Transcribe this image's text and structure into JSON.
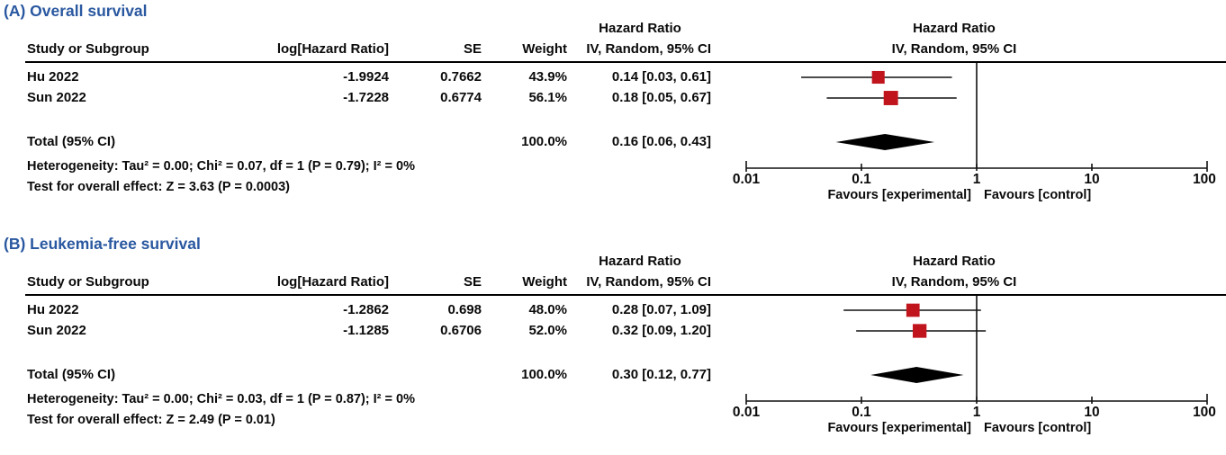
{
  "colors": {
    "title_blue": "#2a58a0",
    "marker_red": "#c1151d",
    "diamond_black": "#000000",
    "line_black": "#111111"
  },
  "chart_data": [
    {
      "type": "forest",
      "panel_label": "(A) Overall survival",
      "x_scale": "log10",
      "xlim": [
        0.01,
        100
      ],
      "x_tick_values": [
        0.01,
        0.1,
        1,
        10,
        100
      ],
      "x_ticks": [
        "0.01",
        "0.1",
        "1",
        "10",
        "100"
      ],
      "reference_value": 1,
      "table_headers": {
        "ci_group": "Hazard Ratio",
        "study": "Study or Subgroup",
        "log_hr": "log[Hazard Ratio]",
        "se": "SE",
        "weight": "Weight",
        "ci": "IV, Random, 95% CI"
      },
      "plot_headers": {
        "top": "Hazard Ratio",
        "bottom": "IV, Random, 95% CI"
      },
      "studies": [
        {
          "name": "Hu 2022",
          "log_hr": "-1.9924",
          "se": "0.7662",
          "weight": "43.9%",
          "weight_value": 43.9,
          "ci_text": "0.14 [0.03, 0.61]",
          "hr": 0.14,
          "ci": [
            0.03,
            0.61
          ]
        },
        {
          "name": "Sun 2022",
          "log_hr": "-1.7228",
          "se": "0.6774",
          "weight": "56.1%",
          "weight_value": 56.1,
          "ci_text": "0.18 [0.05, 0.67]",
          "hr": 0.18,
          "ci": [
            0.05,
            0.67
          ]
        }
      ],
      "total": {
        "label": "Total (95% CI)",
        "weight": "100.0%",
        "ci_text": "0.16 [0.06, 0.43]",
        "hr": 0.16,
        "ci": [
          0.06,
          0.43
        ]
      },
      "heterogeneity_text": "Heterogeneity: Tau² = 0.00; Chi² = 0.07, df = 1 (P = 0.79); I² = 0%",
      "overall_effect_text": "Test for overall effect: Z = 3.63 (P = 0.0003)",
      "favours": {
        "left": "Favours [experimental]",
        "right": "Favours [control]"
      }
    },
    {
      "type": "forest",
      "panel_label": "(B) Leukemia-free survival",
      "x_scale": "log10",
      "xlim": [
        0.01,
        100
      ],
      "x_tick_values": [
        0.01,
        0.1,
        1,
        10,
        100
      ],
      "x_ticks": [
        "0.01",
        "0.1",
        "1",
        "10",
        "100"
      ],
      "reference_value": 1,
      "table_headers": {
        "ci_group": "Hazard Ratio",
        "study": "Study or Subgroup",
        "log_hr": "log[Hazard Ratio]",
        "se": "SE",
        "weight": "Weight",
        "ci": "IV, Random, 95% CI"
      },
      "plot_headers": {
        "top": "Hazard Ratio",
        "bottom": "IV, Random, 95% CI"
      },
      "studies": [
        {
          "name": "Hu 2022",
          "log_hr": "-1.2862",
          "se": "0.698",
          "weight": "48.0%",
          "weight_value": 48.0,
          "ci_text": "0.28 [0.07, 1.09]",
          "hr": 0.28,
          "ci": [
            0.07,
            1.09
          ]
        },
        {
          "name": "Sun 2022",
          "log_hr": "-1.1285",
          "se": "0.6706",
          "weight": "52.0%",
          "weight_value": 52.0,
          "ci_text": "0.32 [0.09, 1.20]",
          "hr": 0.32,
          "ci": [
            0.09,
            1.2
          ]
        }
      ],
      "total": {
        "label": "Total (95% CI)",
        "weight": "100.0%",
        "ci_text": "0.30 [0.12, 0.77]",
        "hr": 0.3,
        "ci": [
          0.12,
          0.77
        ]
      },
      "heterogeneity_text": "Heterogeneity: Tau² = 0.00; Chi² = 0.03, df = 1 (P = 0.87); I² = 0%",
      "overall_effect_text": "Test for overall effect: Z = 2.49 (P = 0.01)",
      "favours": {
        "left": "Favours [experimental]",
        "right": "Favours [control]"
      }
    }
  ]
}
